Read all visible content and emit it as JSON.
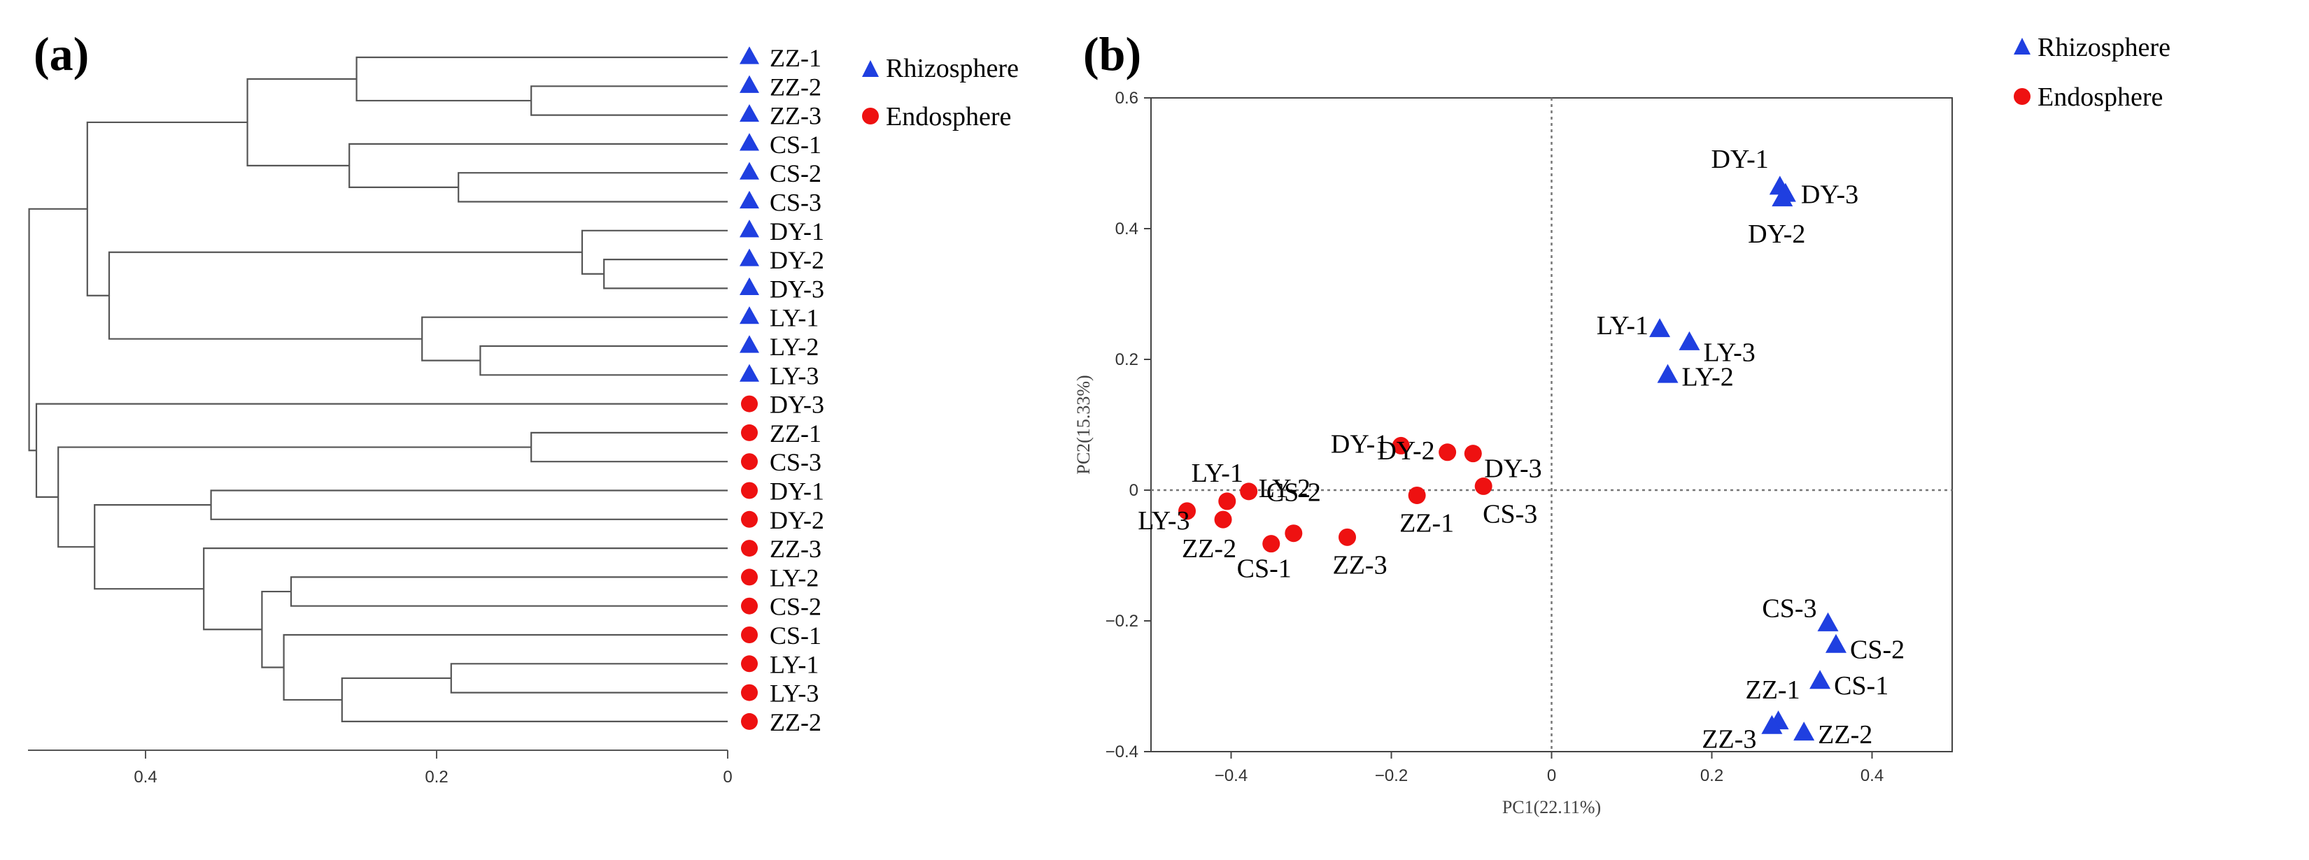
{
  "panels": {
    "a": "(a)",
    "b": "(b)"
  },
  "legend": {
    "rhizosphere": "Rhizosphere",
    "endosphere": "Endosphere"
  },
  "colors": {
    "rhizosphere": "#1f3fe0",
    "endosphere": "#ee1111",
    "line": "#555555",
    "refline": "#777777"
  },
  "chart_data": [
    {
      "type": "dendrogram",
      "axis_ticks": [
        0.4,
        0.2,
        0
      ],
      "axis_range": [
        0.48,
        0
      ],
      "leaves": [
        {
          "label": "ZZ-1",
          "group": "rhizosphere"
        },
        {
          "label": "ZZ-2",
          "group": "rhizosphere"
        },
        {
          "label": "ZZ-3",
          "group": "rhizosphere"
        },
        {
          "label": "CS-1",
          "group": "rhizosphere"
        },
        {
          "label": "CS-2",
          "group": "rhizosphere"
        },
        {
          "label": "CS-3",
          "group": "rhizosphere"
        },
        {
          "label": "DY-1",
          "group": "rhizosphere"
        },
        {
          "label": "DY-2",
          "group": "rhizosphere"
        },
        {
          "label": "DY-3",
          "group": "rhizosphere"
        },
        {
          "label": "LY-1",
          "group": "rhizosphere"
        },
        {
          "label": "LY-2",
          "group": "rhizosphere"
        },
        {
          "label": "LY-3",
          "group": "rhizosphere"
        },
        {
          "label": "DY-3",
          "group": "endosphere"
        },
        {
          "label": "ZZ-1",
          "group": "endosphere"
        },
        {
          "label": "CS-3",
          "group": "endosphere"
        },
        {
          "label": "DY-1",
          "group": "endosphere"
        },
        {
          "label": "DY-2",
          "group": "endosphere"
        },
        {
          "label": "ZZ-3",
          "group": "endosphere"
        },
        {
          "label": "LY-2",
          "group": "endosphere"
        },
        {
          "label": "CS-2",
          "group": "endosphere"
        },
        {
          "label": "CS-1",
          "group": "endosphere"
        },
        {
          "label": "LY-1",
          "group": "endosphere"
        },
        {
          "label": "LY-3",
          "group": "endosphere"
        },
        {
          "label": "ZZ-2",
          "group": "endosphere"
        }
      ],
      "merges": [
        {
          "a": "L1",
          "b": "L2",
          "height": 0.135
        },
        {
          "a": "L0",
          "b": "M0",
          "height": 0.255
        },
        {
          "a": "L4",
          "b": "L5",
          "height": 0.185
        },
        {
          "a": "L3",
          "b": "M2",
          "height": 0.26
        },
        {
          "a": "M1",
          "b": "M3",
          "height": 0.33
        },
        {
          "a": "L7",
          "b": "L8",
          "height": 0.085
        },
        {
          "a": "L6",
          "b": "M5",
          "height": 0.1
        },
        {
          "a": "L10",
          "b": "L11",
          "height": 0.17
        },
        {
          "a": "L9",
          "b": "M7",
          "height": 0.21
        },
        {
          "a": "M6",
          "b": "M8",
          "height": 0.425
        },
        {
          "a": "M4",
          "b": "M9",
          "height": 0.44
        },
        {
          "a": "L13",
          "b": "L14",
          "height": 0.135
        },
        {
          "a": "L15",
          "b": "L16",
          "height": 0.355
        },
        {
          "a": "L18",
          "b": "L19",
          "height": 0.3
        },
        {
          "a": "L21",
          "b": "L22",
          "height": 0.19
        },
        {
          "a": "M14",
          "b": "L23",
          "height": 0.265
        },
        {
          "a": "L20",
          "b": "M15",
          "height": 0.305
        },
        {
          "a": "M13",
          "b": "M16",
          "height": 0.32
        },
        {
          "a": "L17",
          "b": "M17",
          "height": 0.36
        },
        {
          "a": "M12",
          "b": "M18",
          "height": 0.435
        },
        {
          "a": "M11",
          "b": "M19",
          "height": 0.46
        },
        {
          "a": "L12",
          "b": "M20",
          "height": 0.475
        },
        {
          "a": "M10",
          "b": "M21",
          "height": 0.48
        }
      ]
    },
    {
      "type": "scatter",
      "xlabel": "PC1(22.11%)",
      "ylabel": "PC2(15.33%)",
      "xlim": [
        -0.5,
        0.5
      ],
      "ylim": [
        -0.4,
        0.6
      ],
      "xticks": [
        -0.4,
        -0.2,
        0,
        0.2,
        0.4
      ],
      "yticks": [
        -0.4,
        -0.2,
        0,
        0.2,
        0.4,
        0.6
      ],
      "reference_lines": {
        "x": 0,
        "y": 0
      },
      "series": [
        {
          "name": "Rhizosphere",
          "marker": "triangle",
          "points": [
            {
              "label": "DY-1",
              "x": 0.285,
              "y": 0.463
            },
            {
              "label": "DY-3",
              "x": 0.292,
              "y": 0.452
            },
            {
              "label": "DY-2",
              "x": 0.288,
              "y": 0.445
            },
            {
              "label": "LY-1",
              "x": 0.135,
              "y": 0.245
            },
            {
              "label": "LY-3",
              "x": 0.172,
              "y": 0.225
            },
            {
              "label": "LY-2",
              "x": 0.145,
              "y": 0.175
            },
            {
              "label": "CS-3",
              "x": 0.345,
              "y": -0.205
            },
            {
              "label": "CS-2",
              "x": 0.355,
              "y": -0.238
            },
            {
              "label": "CS-1",
              "x": 0.335,
              "y": -0.293
            },
            {
              "label": "ZZ-1",
              "x": 0.283,
              "y": -0.355
            },
            {
              "label": "ZZ-3",
              "x": 0.275,
              "y": -0.362
            },
            {
              "label": "ZZ-2",
              "x": 0.315,
              "y": -0.372
            }
          ]
        },
        {
          "name": "Endosphere",
          "marker": "circle",
          "points": [
            {
              "label": "DY-1",
              "x": -0.188,
              "y": 0.068
            },
            {
              "label": "DY-2",
              "x": -0.13,
              "y": 0.058
            },
            {
              "label": "DY-3",
              "x": -0.098,
              "y": 0.056
            },
            {
              "label": "CS-3",
              "x": -0.085,
              "y": 0.006
            },
            {
              "label": "ZZ-1",
              "x": -0.168,
              "y": -0.008
            },
            {
              "label": "LY-1",
              "x": -0.405,
              "y": -0.017
            },
            {
              "label": "LY-2",
              "x": -0.378,
              "y": -0.002
            },
            {
              "label": "LY-3",
              "x": -0.455,
              "y": -0.032
            },
            {
              "label": "ZZ-2",
              "x": -0.41,
              "y": -0.045
            },
            {
              "label": "CS-2",
              "x": -0.322,
              "y": -0.066
            },
            {
              "label": "CS-1",
              "x": -0.35,
              "y": -0.082
            },
            {
              "label": "ZZ-3",
              "x": -0.255,
              "y": -0.072
            }
          ]
        }
      ]
    }
  ]
}
